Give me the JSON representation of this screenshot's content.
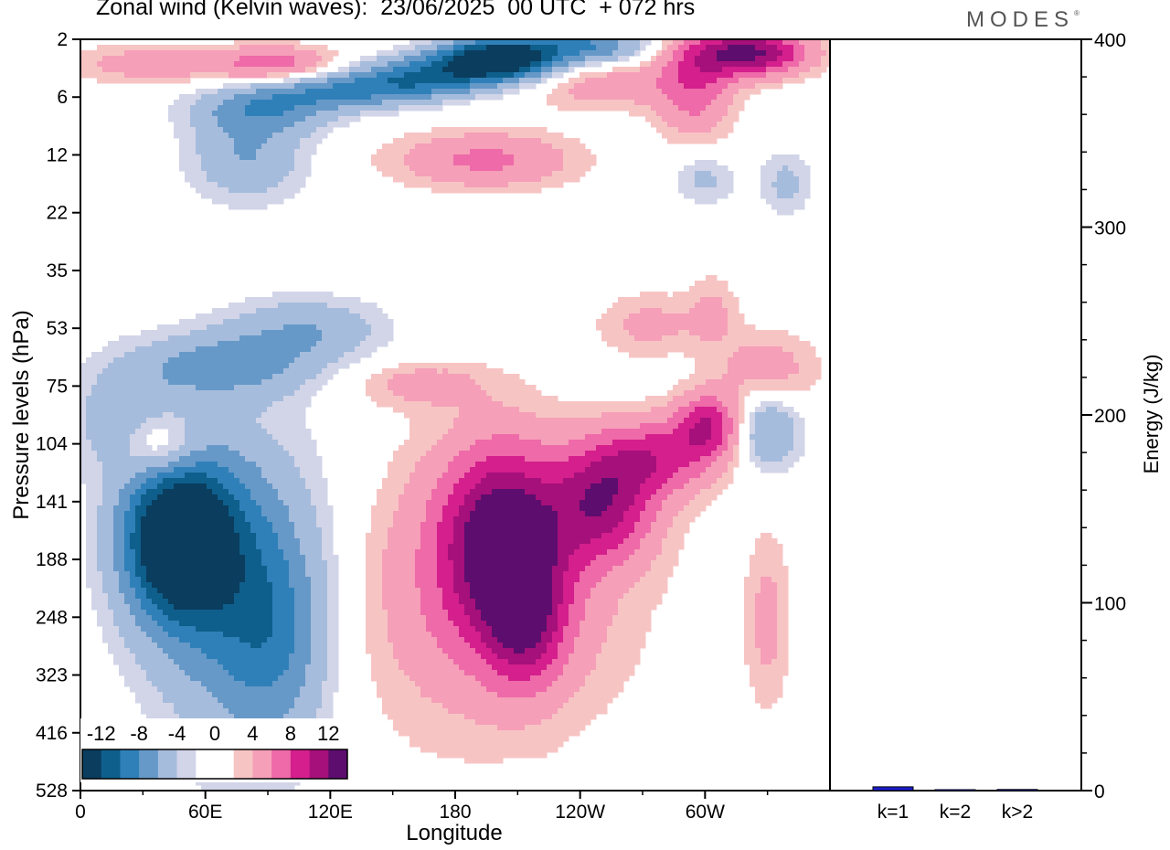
{
  "title": "Zonal wind (Kelvin waves):  23/06/2025  00 UTC  + 072 hrs",
  "brand": "MODES",
  "brand_mark": "®",
  "colors": {
    "negative": [
      "#0a3d5e",
      "#0f5f8c",
      "#2f80b8",
      "#6699c8",
      "#a6bcdc",
      "#d2d5e8"
    ],
    "zero": "#ffffff",
    "positive": [
      "#f7c4c4",
      "#f59fb8",
      "#ee6aa8",
      "#d41f8c",
      "#a6107a",
      "#5d0d6e"
    ],
    "energy_bar_k1": "#1c1ccc",
    "energy_bar_other": "#1c1ccc"
  },
  "chart_data": [
    {
      "type": "heatmap",
      "title": "Zonal wind (Kelvin waves):  23/06/2025  00 UTC  + 072 hrs",
      "xlabel": "Longitude",
      "ylabel": "Pressure levels (hPa)",
      "x_ticks": [
        "0",
        "60E",
        "120E",
        "180",
        "120W",
        "60W"
      ],
      "x_tick_values": [
        0,
        60,
        120,
        180,
        240,
        300
      ],
      "xlim": [
        0,
        360
      ],
      "y_ticks": [
        "2",
        "6",
        "12",
        "22",
        "35",
        "53",
        "75",
        "104",
        "141",
        "188",
        "248",
        "323",
        "416",
        "528"
      ],
      "y_reversed": true,
      "colorbar": {
        "labels": [
          "-12",
          "-8",
          "-4",
          "0",
          "4",
          "8",
          "12"
        ],
        "levels": [
          -12,
          -10,
          -8,
          -6,
          -4,
          -2,
          0,
          2,
          4,
          6,
          8,
          10,
          12
        ]
      },
      "features": [
        {
          "sign": "negative",
          "peak": -13,
          "lon": 42,
          "level": "141-188",
          "desc_level_range": "104-416"
        },
        {
          "sign": "positive",
          "peak": 10,
          "lon": 200,
          "level": "141",
          "desc_level_range": "104-416"
        },
        {
          "sign": "positive",
          "peak": 8,
          "lon": 255,
          "level": "141"
        },
        {
          "sign": "negative",
          "peak": -13,
          "lon": 200,
          "level": "2-6"
        },
        {
          "sign": "positive",
          "peak": 10,
          "lon": 320,
          "level": "2-6"
        },
        {
          "sign": "negative",
          "peak": -4,
          "lon": 325,
          "level": "104-141"
        }
      ]
    },
    {
      "type": "bar",
      "ylabel": "Energy (J/kg)",
      "ylim": [
        0,
        400
      ],
      "y_ticks": [
        "0",
        "100",
        "200",
        "300",
        "400"
      ],
      "categories": [
        "k=1",
        "k=2",
        "k>2"
      ],
      "values": [
        2,
        0.5,
        0.6
      ]
    }
  ]
}
